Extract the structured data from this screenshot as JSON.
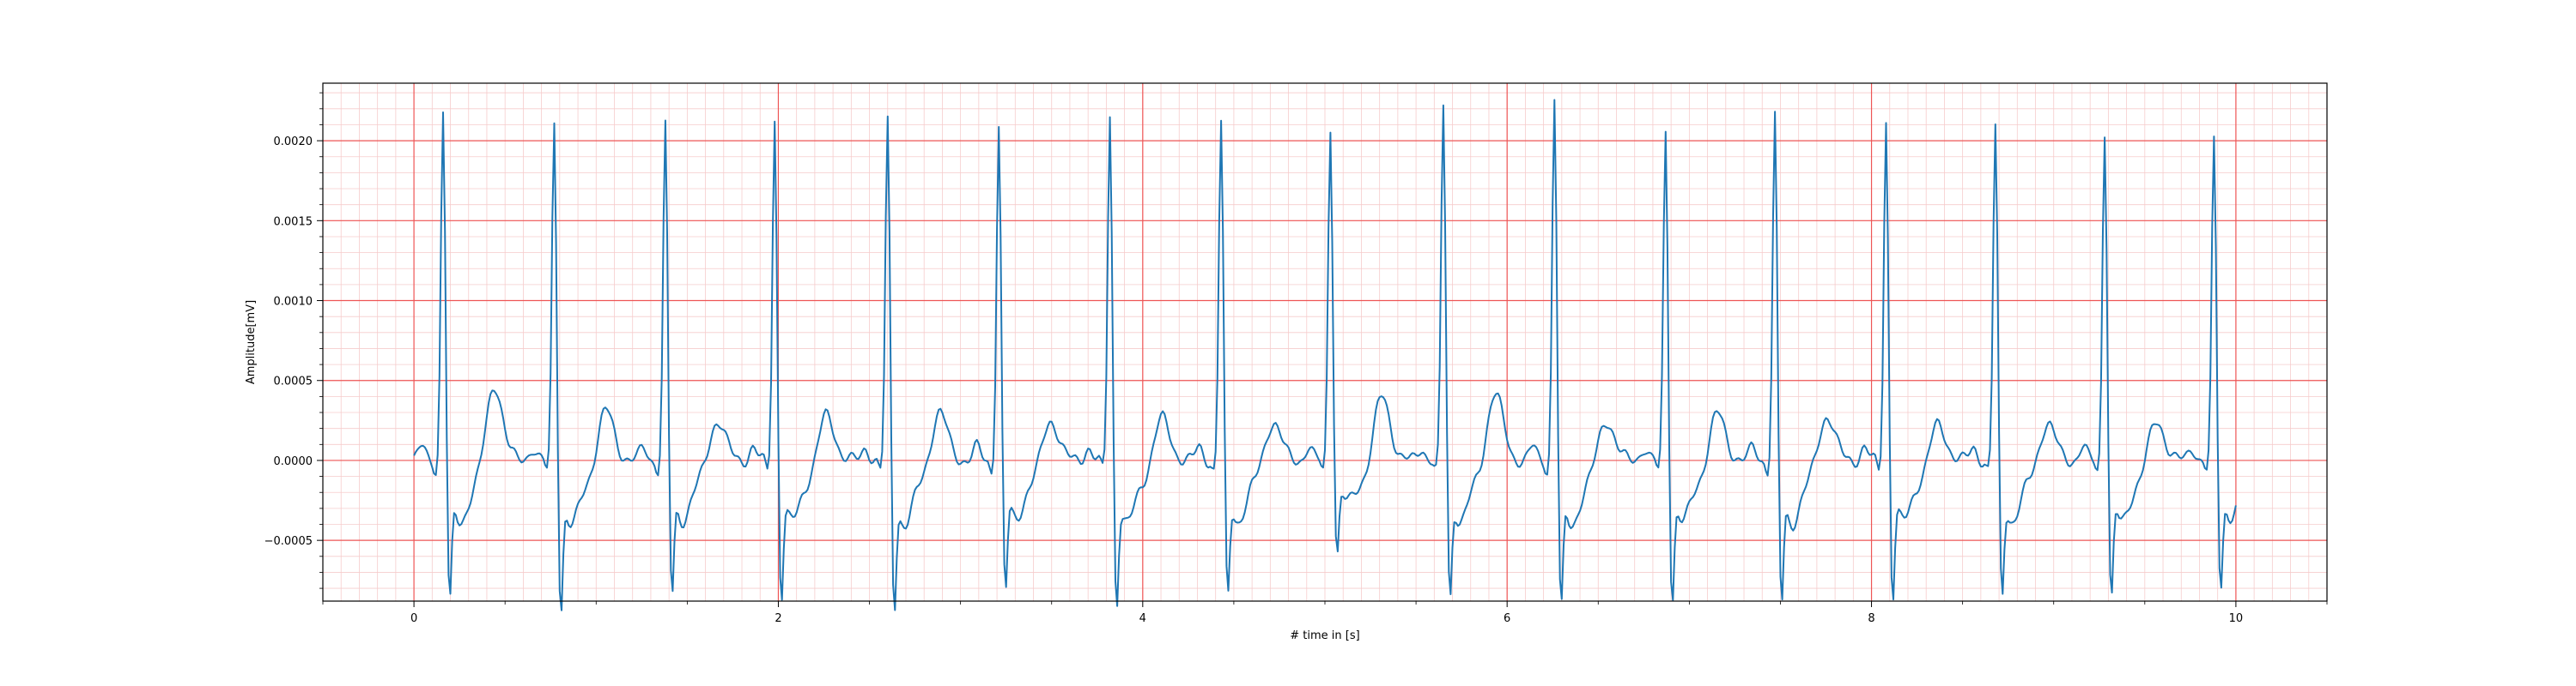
{
  "chart_data": {
    "type": "line",
    "title": "",
    "xlabel": "# time in [s]",
    "ylabel": "Amplitude[mV]",
    "xlim": [
      -0.5,
      10.5
    ],
    "ylim": [
      -0.00088,
      0.00236
    ],
    "xticks": [
      0,
      2,
      4,
      6,
      8,
      10
    ],
    "xtick_labels": [
      "0",
      "2",
      "4",
      "6",
      "8",
      "10"
    ],
    "yticks": [
      -0.0005,
      0.0,
      0.0005,
      0.001,
      0.0015,
      0.002
    ],
    "ytick_labels": [
      "−0.0005",
      "0.0000",
      "0.0005",
      "0.0010",
      "0.0015",
      "0.0020"
    ],
    "grid": true,
    "major_grid_color": "#ee5555",
    "minor_grid_color": "#f6cccc",
    "line_color": "#1f77b4",
    "sampling_rate_hz": 100,
    "r_peak_times_s": [
      0.16,
      0.77,
      1.38,
      1.98,
      2.6,
      3.21,
      3.82,
      4.43,
      5.03,
      5.65,
      6.26,
      6.87,
      7.47,
      8.08,
      8.68,
      9.28,
      9.88
    ],
    "r_peak_values": [
      0.00213,
      0.00205,
      0.00202,
      0.00207,
      0.00205,
      0.00202,
      0.0021,
      0.00205,
      0.00201,
      0.00215,
      0.00221,
      0.002,
      0.00208,
      0.00206,
      0.00202,
      0.002,
      0.00192
    ],
    "s_trough_values": [
      -0.0007,
      -0.00073,
      -0.00066,
      -0.00067,
      -0.00072,
      -0.00064,
      -0.0007,
      -0.00067,
      -0.00045,
      -0.00067,
      -0.00073,
      -0.00068,
      -0.0007,
      -0.00067,
      -0.00067,
      -0.00068,
      -0.00062
    ],
    "t_wave_values": [
      0.00042,
      0.00026,
      0.0002,
      0.00023,
      0.00025,
      0.0002,
      0.00021,
      0.00019,
      0.00035,
      0.00037,
      0.0002,
      0.00024,
      0.00023,
      0.00017,
      0.00018,
      0.00019,
      0.00012
    ]
  }
}
